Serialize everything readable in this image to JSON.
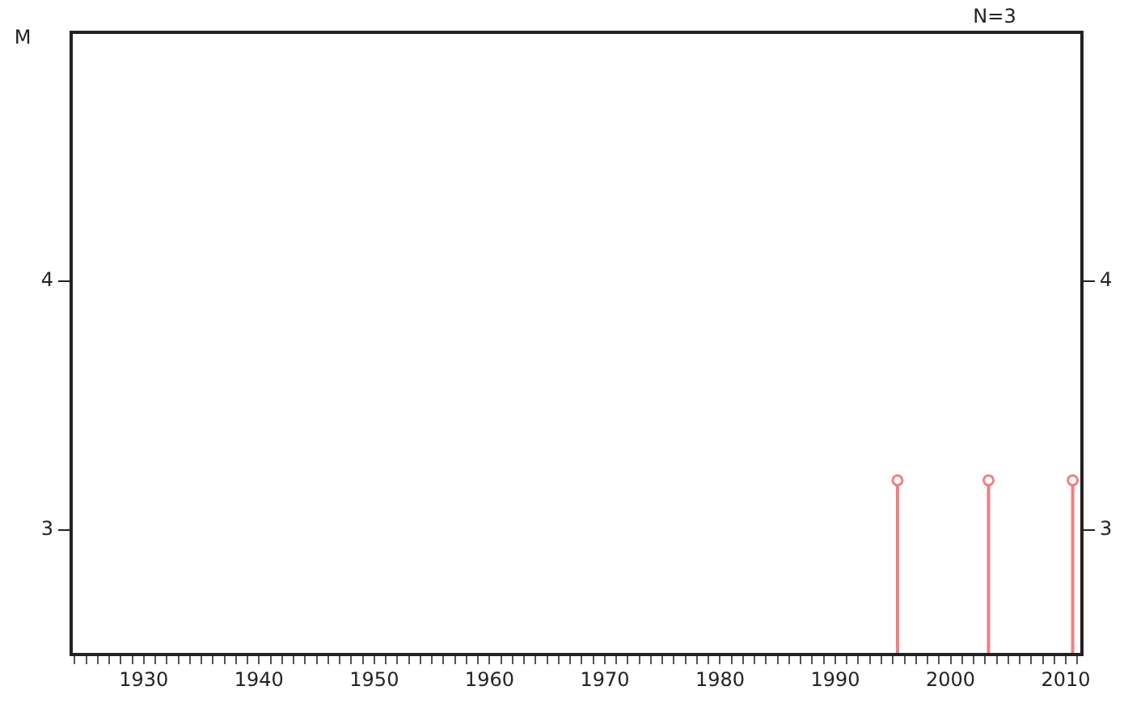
{
  "chart_data": {
    "type": "lollipop",
    "ylabel": "M",
    "annotations": [
      "N=3"
    ],
    "x": [
      1995.4,
      2003.3,
      2010.6
    ],
    "series": [
      {
        "color": "#f08080",
        "values": [
          3.2,
          3.2,
          3.2
        ]
      }
    ],
    "xlim": [
      1923.7,
      2011.4
    ],
    "xticks": [
      {
        "value": 1924,
        "label": null
      },
      {
        "value": 1925,
        "label": null
      },
      {
        "value": 1926,
        "label": null
      },
      {
        "value": 1927,
        "label": null
      },
      {
        "value": 1928,
        "label": null
      },
      {
        "value": 1929,
        "label": null
      },
      1930,
      {
        "value": 1931,
        "label": null
      },
      {
        "value": 1932,
        "label": null
      },
      {
        "value": 1933,
        "label": null
      },
      {
        "value": 1934,
        "label": null
      },
      {
        "value": 1935,
        "label": null
      },
      {
        "value": 1936,
        "label": null
      },
      {
        "value": 1937,
        "label": null
      },
      {
        "value": 1938,
        "label": null
      },
      {
        "value": 1939,
        "label": null
      },
      1940,
      {
        "value": 1941,
        "label": null
      },
      {
        "value": 1942,
        "label": null
      },
      {
        "value": 1943,
        "label": null
      },
      {
        "value": 1944,
        "label": null
      },
      {
        "value": 1945,
        "label": null
      },
      {
        "value": 1946,
        "label": null
      },
      {
        "value": 1947,
        "label": null
      },
      {
        "value": 1948,
        "label": null
      },
      {
        "value": 1949,
        "label": null
      },
      1950,
      {
        "value": 1951,
        "label": null
      },
      {
        "value": 1952,
        "label": null
      },
      {
        "value": 1953,
        "label": null
      },
      {
        "value": 1954,
        "label": null
      },
      {
        "value": 1955,
        "label": null
      },
      {
        "value": 1956,
        "label": null
      },
      {
        "value": 1957,
        "label": null
      },
      {
        "value": 1958,
        "label": null
      },
      {
        "value": 1959,
        "label": null
      },
      1960,
      {
        "value": 1961,
        "label": null
      },
      {
        "value": 1962,
        "label": null
      },
      {
        "value": 1963,
        "label": null
      },
      {
        "value": 1964,
        "label": null
      },
      {
        "value": 1965,
        "label": null
      },
      {
        "value": 1966,
        "label": null
      },
      {
        "value": 1967,
        "label": null
      },
      {
        "value": 1968,
        "label": null
      },
      {
        "value": 1969,
        "label": null
      },
      1970,
      {
        "value": 1971,
        "label": null
      },
      {
        "value": 1972,
        "label": null
      },
      {
        "value": 1973,
        "label": null
      },
      {
        "value": 1974,
        "label": null
      },
      {
        "value": 1975,
        "label": null
      },
      {
        "value": 1976,
        "label": null
      },
      {
        "value": 1977,
        "label": null
      },
      {
        "value": 1978,
        "label": null
      },
      {
        "value": 1979,
        "label": null
      },
      1980,
      {
        "value": 1981,
        "label": null
      },
      {
        "value": 1982,
        "label": null
      },
      {
        "value": 1983,
        "label": null
      },
      {
        "value": 1984,
        "label": null
      },
      {
        "value": 1985,
        "label": null
      },
      {
        "value": 1986,
        "label": null
      },
      {
        "value": 1987,
        "label": null
      },
      {
        "value": 1988,
        "label": null
      },
      {
        "value": 1989,
        "label": null
      },
      1990,
      {
        "value": 1991,
        "label": null
      },
      {
        "value": 1992,
        "label": null
      },
      {
        "value": 1993,
        "label": null
      },
      {
        "value": 1994,
        "label": null
      },
      {
        "value": 1995,
        "label": null
      },
      {
        "value": 1996,
        "label": null
      },
      {
        "value": 1997,
        "label": null
      },
      {
        "value": 1998,
        "label": null
      },
      {
        "value": 1999,
        "label": null
      },
      2000,
      {
        "value": 2001,
        "label": null
      },
      {
        "value": 2002,
        "label": null
      },
      {
        "value": 2003,
        "label": null
      },
      {
        "value": 2004,
        "label": null
      },
      {
        "value": 2005,
        "label": null
      },
      {
        "value": 2006,
        "label": null
      },
      {
        "value": 2007,
        "label": null
      },
      {
        "value": 2008,
        "label": null
      },
      {
        "value": 2009,
        "label": null
      },
      2010,
      {
        "value": 2011,
        "label": null
      }
    ],
    "ylim": [
      2.5,
      5
    ],
    "yticks": [
      3,
      4
    ],
    "y2lim": [
      2.5,
      5
    ],
    "y2ticks": [
      3,
      4
    ],
    "marker": "circle",
    "grid": false,
    "legend": false
  }
}
